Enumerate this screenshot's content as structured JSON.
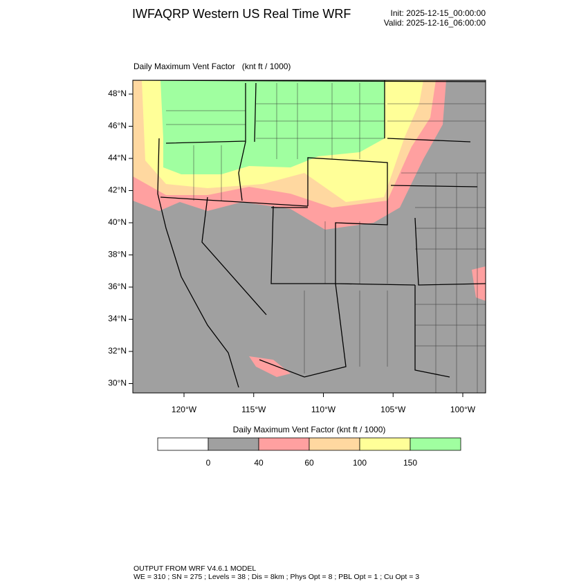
{
  "header": {
    "title": "IWFAQRP Western US Real Time WRF",
    "init": "Init: 2025-12-15_00:00:00",
    "valid": "Valid: 2025-12-16_06:00:00"
  },
  "map": {
    "title": "Daily Maximum Vent Factor",
    "units": "(knt ft / 1000)",
    "lat_labels": [
      "48°N",
      "46°N",
      "44°N",
      "42°N",
      "40°N",
      "38°N",
      "36°N",
      "34°N",
      "32°N",
      "30°N"
    ],
    "lon_labels": [
      "120°W",
      "115°W",
      "110°W",
      "105°W",
      "100°W"
    ]
  },
  "colorbar": {
    "title": "Daily Maximum Vent Factor  (knt ft / 1000)",
    "levels": [
      0,
      40,
      60,
      100,
      150
    ],
    "colors": [
      "#ffffff",
      "#a0a0a0",
      "#ffa0a0",
      "#ffd8a0",
      "#ffff98",
      "#a0ffa0"
    ]
  },
  "footer": {
    "line1": "OUTPUT FROM WRF V4.6.1 MODEL",
    "line2": "WE = 310 ; SN = 275 ; Levels = 38 ; Dis = 8km ; Phys Opt = 8 ; PBL Opt = 1 ; Cu Opt = 3"
  }
}
